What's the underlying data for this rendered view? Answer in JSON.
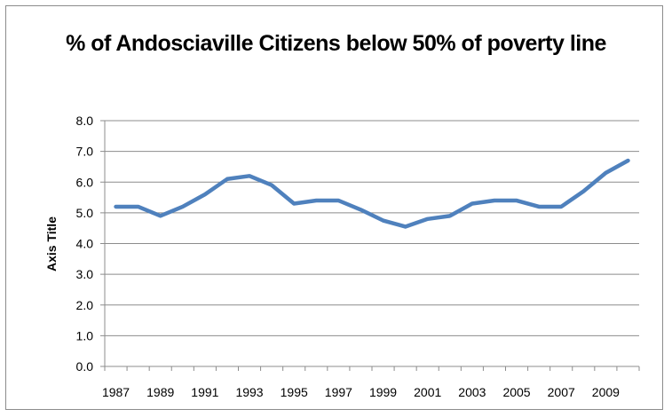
{
  "chart_data": {
    "type": "line",
    "title": "% of Andosciaville Citizens below 50% of poverty line",
    "xlabel": "",
    "ylabel": "Axis Title",
    "x": [
      1987,
      1988,
      1989,
      1990,
      1991,
      1992,
      1993,
      1994,
      1995,
      1996,
      1997,
      1998,
      1999,
      2000,
      2001,
      2002,
      2003,
      2004,
      2005,
      2006,
      2007,
      2008,
      2009,
      2010
    ],
    "series": [
      {
        "values": [
          5.2,
          5.2,
          4.9,
          5.2,
          5.6,
          6.1,
          6.2,
          5.9,
          5.3,
          5.4,
          5.4,
          5.1,
          4.75,
          4.55,
          4.8,
          4.9,
          5.3,
          5.4,
          5.4,
          5.2,
          5.2,
          5.7,
          6.3,
          6.7
        ],
        "color": "#4f81bd"
      }
    ],
    "xtick_labels": [
      "1987",
      "1989",
      "1991",
      "1993",
      "1995",
      "1997",
      "1999",
      "2001",
      "2003",
      "2005",
      "2007",
      "2009"
    ],
    "ytick_labels": [
      "0.0",
      "1.0",
      "2.0",
      "3.0",
      "4.0",
      "5.0",
      "6.0",
      "7.0",
      "8.0"
    ],
    "ylim": [
      0,
      8
    ],
    "grid": true,
    "legend": "none"
  }
}
